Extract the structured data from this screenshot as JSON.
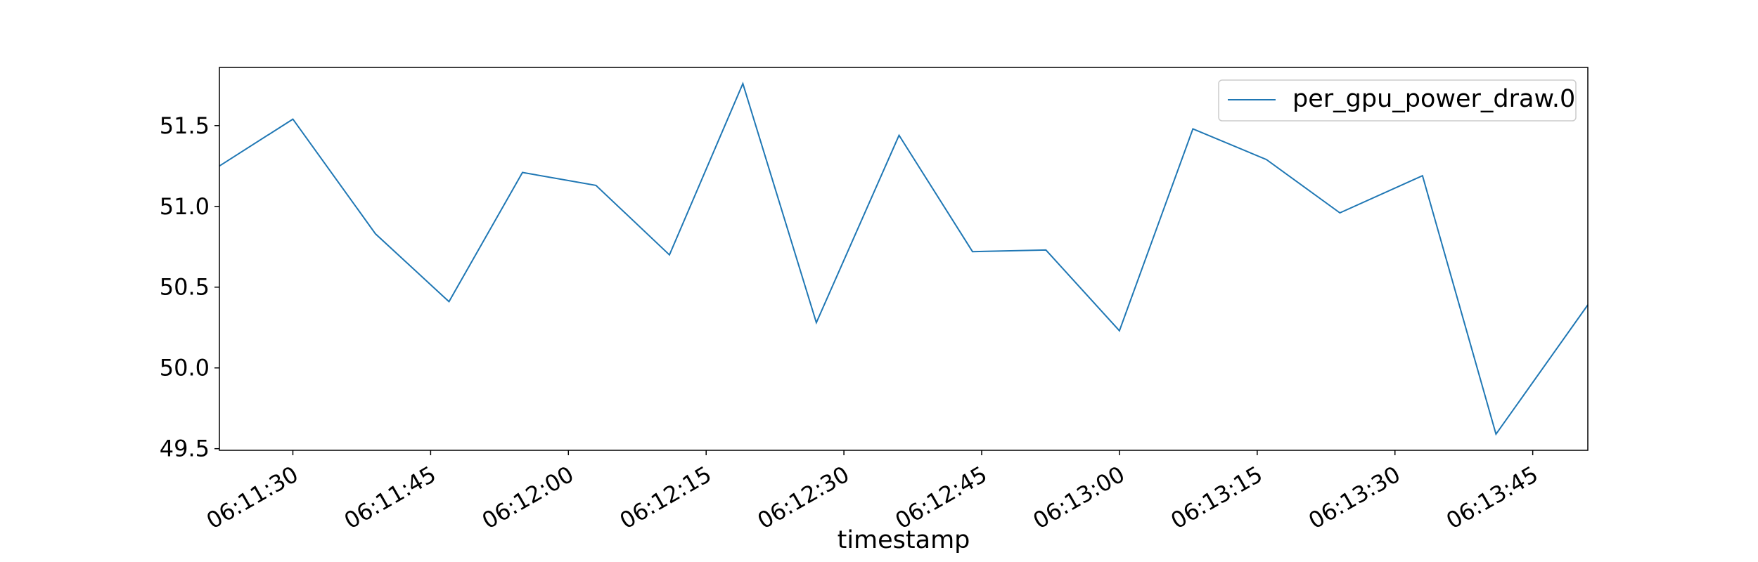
{
  "chart_data": {
    "type": "line",
    "title": "",
    "xlabel": "timestamp",
    "ylabel": "",
    "x_format": "HH:MM:SS",
    "xlim": [
      "06:11:22",
      "06:13:51"
    ],
    "ylim": [
      49.49,
      51.86
    ],
    "x_ticks": [
      "06:11:30",
      "06:11:45",
      "06:12:00",
      "06:12:15",
      "06:12:30",
      "06:12:45",
      "06:13:00",
      "06:13:15",
      "06:13:30",
      "06:13:45"
    ],
    "y_ticks": [
      "49.5",
      "50.0",
      "50.5",
      "51.0",
      "51.5"
    ],
    "grid": false,
    "legend_position": "top-right",
    "series": [
      {
        "name": "per_gpu_power_draw.0",
        "color": "#1f77b4",
        "x": [
          "06:11:22",
          "06:11:30",
          "06:11:39",
          "06:11:47",
          "06:11:55",
          "06:12:03",
          "06:12:11",
          "06:12:19",
          "06:12:27",
          "06:12:36",
          "06:12:44",
          "06:12:52",
          "06:13:00",
          "06:13:08",
          "06:13:16",
          "06:13:24",
          "06:13:33",
          "06:13:41",
          "06:13:51"
        ],
        "values": [
          51.25,
          51.54,
          50.83,
          50.41,
          51.21,
          51.13,
          50.7,
          51.76,
          50.28,
          51.44,
          50.72,
          50.73,
          50.23,
          51.48,
          51.29,
          50.96,
          51.19,
          49.59,
          50.39
        ]
      }
    ]
  }
}
